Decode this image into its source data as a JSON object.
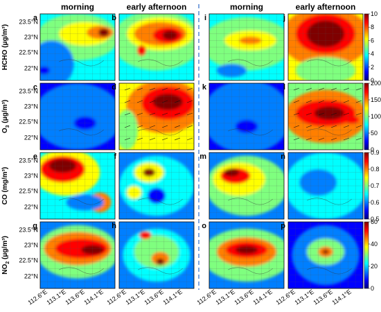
{
  "column_titles": [
    "morning",
    "early afternoon",
    "morning",
    "early afternoon"
  ],
  "panel_letters": [
    [
      "a",
      "b",
      "i",
      "j"
    ],
    [
      "c",
      "d",
      "k",
      "l"
    ],
    [
      "e",
      "f",
      "m",
      "n"
    ],
    [
      "g",
      "h",
      "o",
      "p"
    ]
  ],
  "rows": [
    {
      "key": "hcho",
      "label_pre": "HCHO (",
      "label_unit": "μg/m³",
      "label_post": ")",
      "ticks": [
        "0",
        "2",
        "4",
        "6",
        "8",
        "10"
      ]
    },
    {
      "key": "o3",
      "label_pre": "O",
      "label_sub": "3",
      "label_post2": " (μg/m³)",
      "ticks": [
        "0",
        "50",
        "100",
        "150",
        "200"
      ]
    },
    {
      "key": "co",
      "label_pre": "CO (mg/m³)",
      "ticks": [
        "0.5",
        "0.6",
        "0.7",
        "0.8",
        "0.9"
      ]
    },
    {
      "key": "no2",
      "label_pre": "NO",
      "label_sub": "2",
      "label_post2": " (μg/m³)",
      "ticks": [
        "0",
        "20",
        "40",
        "60"
      ]
    }
  ],
  "lat_ticks": [
    "23.5°N",
    "23°N",
    "22.5°N",
    "22°N"
  ],
  "lon_ticks": [
    "112.6°E",
    "113.1°E",
    "113.6°E",
    "114.1°E"
  ],
  "colormap": [
    "#00007f",
    "#0000ff",
    "#007fff",
    "#00ffff",
    "#7fff7f",
    "#ffff00",
    "#ff7f00",
    "#ff0000",
    "#7f0000"
  ]
}
